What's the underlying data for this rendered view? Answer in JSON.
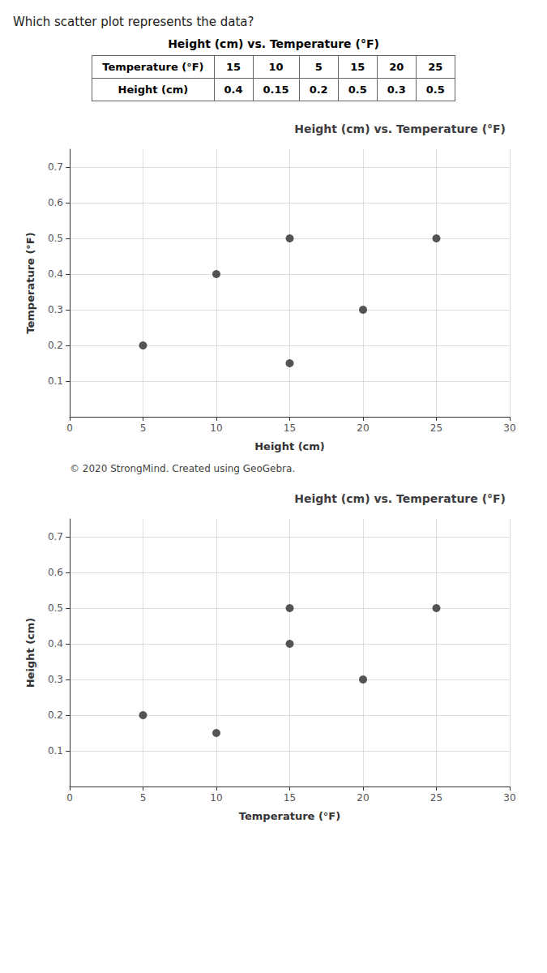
{
  "chart_data": [
    {
      "type": "table",
      "title": "Height (cm) vs. Temperature (°F)",
      "annotations": [
        "Which scatter plot represents the data?"
      ],
      "series": [
        {
          "name": "Temperature (°F)",
          "values": [
            15,
            10,
            5,
            15,
            20,
            25
          ]
        },
        {
          "name": "Height (cm)",
          "values": [
            0.4,
            0.15,
            0.2,
            0.5,
            0.3,
            0.5
          ]
        }
      ]
    },
    {
      "type": "scatter",
      "title": "Height (cm) vs. Temperature (°F)",
      "xlabel": "Height (cm)",
      "ylabel": "Temperature (°F)",
      "x": [
        5,
        10,
        15,
        15,
        20,
        25
      ],
      "values": [
        0.2,
        0.4,
        0.5,
        0.15,
        0.3,
        0.5
      ],
      "xlim": [
        0,
        30
      ],
      "ylim": [
        0,
        0.75
      ],
      "xticks": [
        0,
        5,
        10,
        15,
        20,
        25,
        30
      ],
      "yticks": [
        0.1,
        0.2,
        0.3,
        0.4,
        0.5,
        0.6,
        0.7
      ],
      "grid": true,
      "color": "#2a2a2a",
      "annotations": [
        "© 2020 StrongMind. Created using GeoGebra."
      ]
    },
    {
      "type": "scatter",
      "title": "Height (cm) vs. Temperature (°F)",
      "xlabel": "Temperature (°F)",
      "ylabel": "Height (cm)",
      "x": [
        15,
        10,
        5,
        15,
        20,
        25
      ],
      "values": [
        0.4,
        0.15,
        0.2,
        0.5,
        0.3,
        0.5
      ],
      "xlim": [
        0,
        30
      ],
      "ylim": [
        0,
        0.75
      ],
      "xticks": [
        0,
        5,
        10,
        15,
        20,
        25,
        30
      ],
      "yticks": [
        0.1,
        0.2,
        0.3,
        0.4,
        0.5,
        0.6,
        0.7
      ],
      "grid": true,
      "color": "#2a2a2a"
    }
  ]
}
